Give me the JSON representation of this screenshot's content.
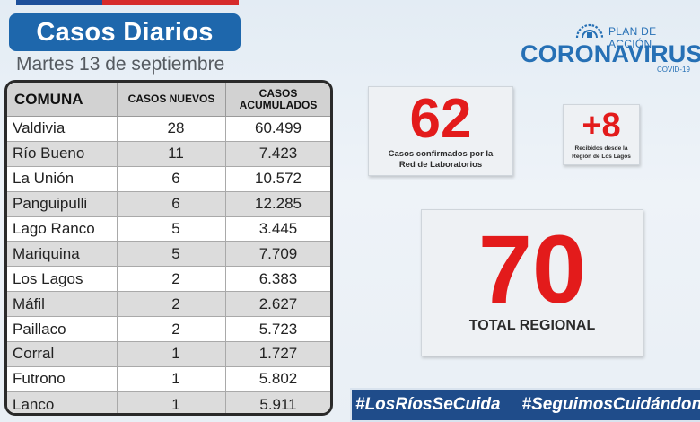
{
  "header": {
    "title": "Casos Diarios",
    "date": "Martes 13 de septiembre"
  },
  "brand": {
    "plan_label": "PLAN DE ACCIÓN",
    "main_label": "CORONAVIRUS",
    "sub_label": "COVID-19",
    "logo_icon": "government-emblem-icon",
    "color": "#2670b5"
  },
  "table": {
    "headers": [
      "COMUNA",
      "CASOS NUEVOS",
      "CASOS ACUMULADOS"
    ],
    "rows": [
      {
        "comuna": "Valdivia",
        "nuevos": "28",
        "acumulados": "60.499"
      },
      {
        "comuna": "Río Bueno",
        "nuevos": "11",
        "acumulados": "7.423"
      },
      {
        "comuna": "La Unión",
        "nuevos": "6",
        "acumulados": "10.572"
      },
      {
        "comuna": "Panguipulli",
        "nuevos": "6",
        "acumulados": "12.285"
      },
      {
        "comuna": "Lago Ranco",
        "nuevos": "5",
        "acumulados": "3.445"
      },
      {
        "comuna": "Mariquina",
        "nuevos": "5",
        "acumulados": "7.709"
      },
      {
        "comuna": "Los Lagos",
        "nuevos": "2",
        "acumulados": "6.383"
      },
      {
        "comuna": "Máfil",
        "nuevos": "2",
        "acumulados": "2.627"
      },
      {
        "comuna": "Paillaco",
        "nuevos": "2",
        "acumulados": "5.723"
      },
      {
        "comuna": "Corral",
        "nuevos": "1",
        "acumulados": "1.727"
      },
      {
        "comuna": "Futrono",
        "nuevos": "1",
        "acumulados": "5.802"
      },
      {
        "comuna": "Lanco",
        "nuevos": "1",
        "acumulados": "5.911"
      }
    ]
  },
  "cards": {
    "lab": {
      "value": "62",
      "label": "Casos confirmados por la Red de Laboratorios"
    },
    "los_lagos": {
      "value": "+8",
      "label": "Recibidos desde la Región de Los Lagos"
    },
    "total": {
      "value": "70",
      "label": "TOTAL REGIONAL"
    }
  },
  "hashtags": [
    "#LosRíosSeCuida",
    "#SeguimosCuidándonos"
  ],
  "colors": {
    "title_bg": "#1e67ac",
    "number_red": "#e31b1b",
    "hashbar_bg": "#1f4c8a",
    "flag_blue": "#1d4f9a",
    "flag_red": "#d62b2b"
  }
}
